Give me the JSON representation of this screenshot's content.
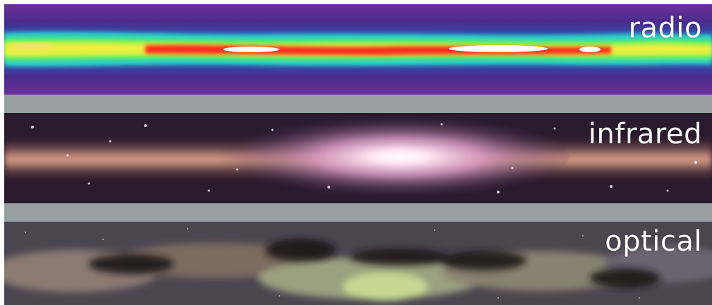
{
  "panels": {
    "radio": {
      "label": "radio"
    },
    "infrared": {
      "label": "infrared"
    },
    "optical": {
      "label": "optical"
    }
  },
  "colors": {
    "radio_background": "#5a2a8a",
    "radio_core": "#ff2a1a",
    "infrared_glow": "#ffd6e8",
    "optical_dust": "#3a2a22",
    "separator": "#9aa0a2"
  }
}
